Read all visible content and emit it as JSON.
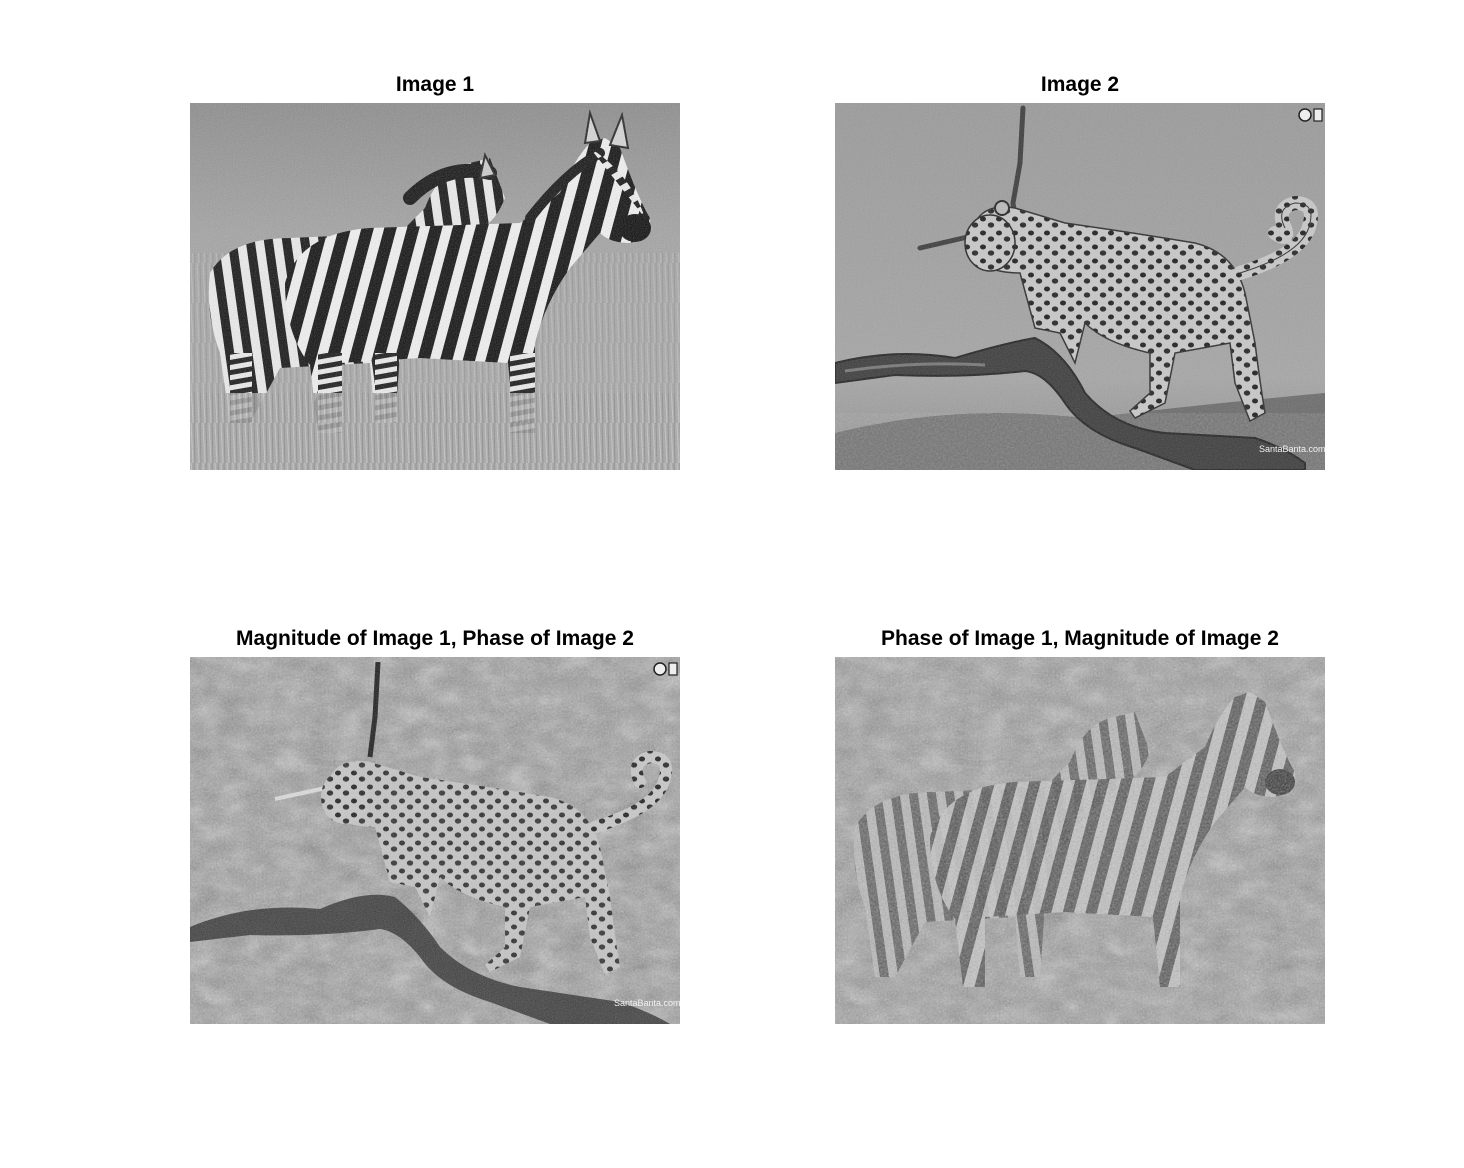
{
  "panels": [
    {
      "title": "Image 1"
    },
    {
      "title": "Image 2",
      "watermark": "SantaBanta.com"
    },
    {
      "title": "Magnitude of Image 1, Phase of Image 2",
      "watermark": "SantaBanta.com"
    },
    {
      "title": "Phase of Image 1, Magnitude of Image 2"
    }
  ],
  "colors": {
    "background": "#ffffff",
    "title": "#000000"
  }
}
